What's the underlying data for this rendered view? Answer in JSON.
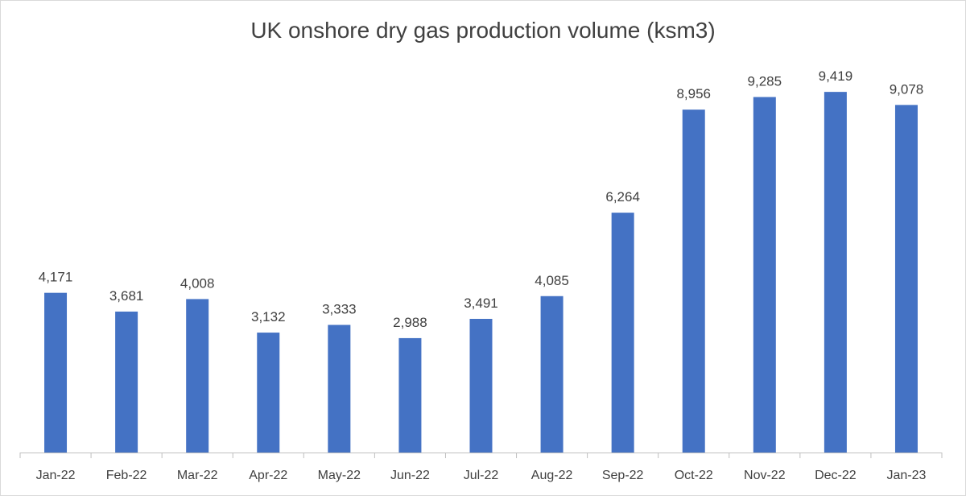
{
  "chart_data": {
    "type": "bar",
    "title": "UK onshore dry gas production volume (ksm3)",
    "categories": [
      "Jan-22",
      "Feb-22",
      "Mar-22",
      "Apr-22",
      "May-22",
      "Jun-22",
      "Jul-22",
      "Aug-22",
      "Sep-22",
      "Oct-22",
      "Nov-22",
      "Dec-22",
      "Jan-23"
    ],
    "series": [
      {
        "values": [
          4171,
          3681,
          4008,
          3132,
          3333,
          2988,
          3491,
          4085,
          6264,
          8956,
          9285,
          9419,
          9078
        ],
        "labels": [
          "4,171",
          "3,681",
          "4,008",
          "3,132",
          "3,333",
          "2,988",
          "3,491",
          "4,085",
          "6,264",
          "8,956",
          "9,285",
          "9,419",
          "9,078"
        ],
        "color": "#4472c4"
      }
    ],
    "xlabel": "",
    "ylabel": "",
    "ylim": [
      0,
      10000
    ],
    "grid": false,
    "legend": "none"
  }
}
